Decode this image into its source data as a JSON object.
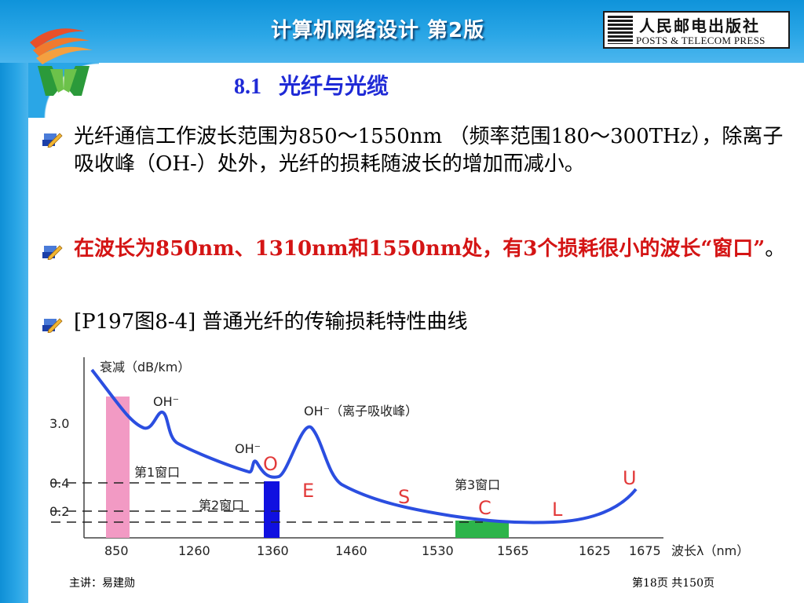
{
  "header": {
    "book_title": "计算机网络设计  第2版",
    "publisher_cn": "人民邮电出版社",
    "publisher_en": "POSTS & TELECOM PRESS",
    "colors": {
      "bar": "#2aa6e6",
      "title": "#1f2ad6",
      "highlight": "#d41414"
    }
  },
  "section": {
    "number": "8.1",
    "title": "光纤与光缆"
  },
  "bullets": {
    "b1": "光纤通信工作波长范围为850～1550nm （频率范围180～300THz），除离子吸收峰（OH-）处外，光纤的损耗随波长的增加而减小。",
    "b2_red": "在波长为850nm、1310nm和1550nm处，有3个损耗很小的波长“窗口”",
    "b2_tail": "。",
    "b3": "[P197图8-4]  普通光纤的传输损耗特性曲线",
    "marker_icon": "pencil-bullet-icon"
  },
  "figure": {
    "y_axis_label": "衰减（dB/km）",
    "x_axis_label": "波长λ（nm）",
    "y_ticks": [
      "3.0",
      "0.4",
      "0.2"
    ],
    "x_ticks": [
      "850",
      "1260",
      "1360",
      "1460",
      "1530",
      "1565",
      "1625",
      "1675"
    ],
    "peak_labels": [
      "OH⁻",
      "OH⁻",
      "OH⁻（离子吸收峰）"
    ],
    "window_labels": [
      "第1窗口",
      "第2窗口",
      "第3窗口"
    ],
    "band_letters": [
      "O",
      "E",
      "S",
      "C",
      "L",
      "U"
    ],
    "colors": {
      "window1": "#f29ac4",
      "window2": "#1010e0",
      "window3": "#2db44a",
      "curve": "#2b4ee0",
      "letters": "#e23a3a"
    }
  },
  "footer": {
    "lecturer": "主讲：易建勋",
    "page": "第18页 共150页"
  }
}
